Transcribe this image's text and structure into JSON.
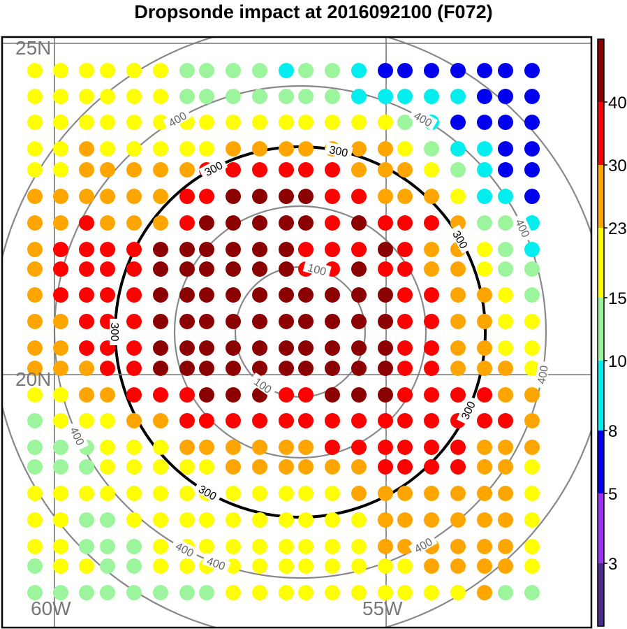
{
  "chart_data": {
    "type": "scatter",
    "title": "Dropsonde impact at 2016092100 (F072)",
    "lat_labels": [
      "25N",
      "20N"
    ],
    "lon_labels": [
      "60W",
      "55W"
    ],
    "colorbar": {
      "labels": [
        "3",
        "5",
        "8",
        "10",
        "15",
        "23",
        "30",
        "40"
      ],
      "colors": [
        "#4b2a8f",
        "#9b30ff",
        "#0000ee",
        "#00eeee",
        "#9cf59c",
        "#ffff00",
        "#ffa500",
        "#ff0000",
        "#8b0000"
      ]
    },
    "dot_palette": {
      "Y": "#ffff00",
      "G": "#9cf59c",
      "C": "#00eeee",
      "B": "#0000ee",
      "O": "#ffa500",
      "R": "#ff0000",
      "D": "#8b0000"
    },
    "dot_grid": {
      "columns": 21,
      "rows": [
        "YYYYYYGGGGCGGCBBBBBBB",
        "YYYYYYGGGGGGGCCCCCBBB",
        "YYYYYYYYYYYYYYYGCBBBB",
        "YYOYYYYYOOOOOOOYGCCBB",
        "YYOOOOORRRRRROOOYGCBB",
        "OOOOOORRDDDDRROOOYCCB",
        "OOROOORDDDDDRDRRROGGC",
        "ORRRRDDDDDDRRRDROOYGC",
        "ORRRRDDDDDDRRDRROOYGG",
        "ORRRRDDDDDDDDDDRROOYG",
        "OORRRDDDDDDDDDDRROOYY",
        "OORRRDDDDDDDDDDRROOYY",
        "OOORRDDDDDDDDDDRROOOY",
        "YYOORRRDDDRRDDDRRRROO",
        "GYYYOORRRRRRRRRRRRRRO",
        "GGGYYYOOOOOORRRRRROOO",
        "GGGYYYYYOOOOOORRRROOY",
        "YYYYYYYYYYYYYOOOOOOOY",
        "YYGGYYYYYYYYYYOOOOOOY",
        "YYGGGYYYYYYYYYOOOOOOY",
        "GYYGGYYYYYYYYYYYOOOOY",
        "GGGGGGGGYYYYYYYYYYOGG"
      ]
    },
    "contours": [
      {
        "level": 100,
        "label": "100",
        "color": "#888888"
      },
      {
        "level": 200,
        "label": "",
        "color": "#888888"
      },
      {
        "level": 300,
        "label": "300",
        "color": "#000000"
      },
      {
        "level": 400,
        "label": "400",
        "color": "#888888"
      },
      {
        "level": 500,
        "label": "",
        "color": "#888888"
      }
    ]
  }
}
